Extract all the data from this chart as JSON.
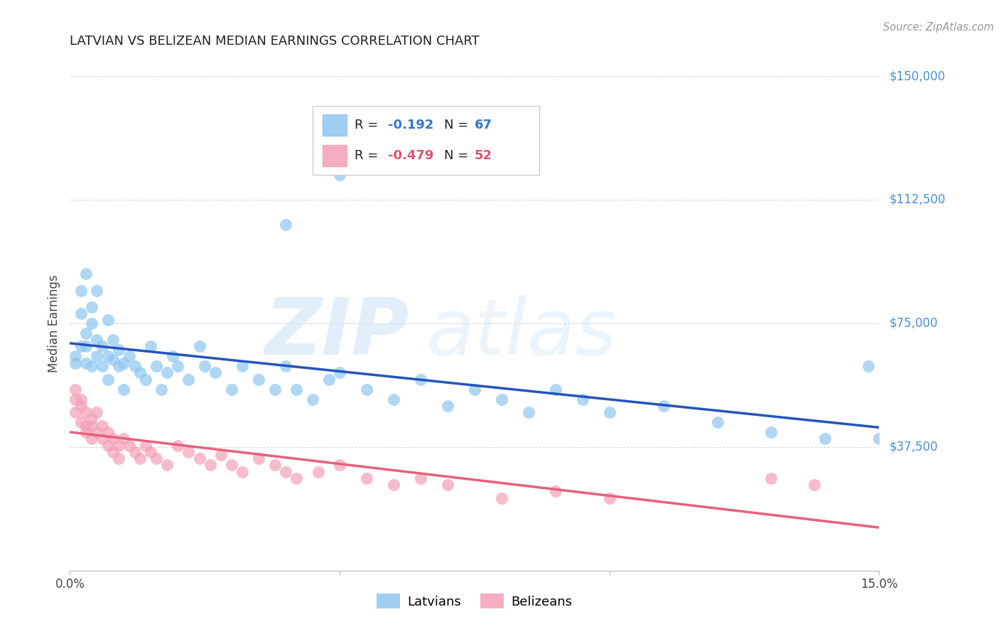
{
  "title": "LATVIAN VS BELIZEAN MEDIAN EARNINGS CORRELATION CHART",
  "source": "Source: ZipAtlas.com",
  "ylabel": "Median Earnings",
  "xlim": [
    0.0,
    0.15
  ],
  "ylim": [
    0,
    150000
  ],
  "yticks": [
    0,
    37500,
    75000,
    112500,
    150000
  ],
  "ytick_labels": [
    "",
    "$37,500",
    "$75,000",
    "$112,500",
    "$150,000"
  ],
  "background_color": "#ffffff",
  "grid_color": "#d0d0d0",
  "latvian_color": "#8ec6f0",
  "belizean_color": "#f4a0b5",
  "latvian_line_color": "#2255bb",
  "belizean_line_color": "#e8607a",
  "latvian_R": -0.192,
  "latvian_N": 67,
  "belizean_R": -0.479,
  "belizean_N": 52,
  "latvian_x": [
    0.001,
    0.001,
    0.002,
    0.002,
    0.002,
    0.003,
    0.003,
    0.003,
    0.003,
    0.004,
    0.004,
    0.004,
    0.005,
    0.005,
    0.005,
    0.006,
    0.006,
    0.007,
    0.007,
    0.007,
    0.008,
    0.008,
    0.009,
    0.009,
    0.01,
    0.01,
    0.011,
    0.012,
    0.013,
    0.014,
    0.015,
    0.016,
    0.017,
    0.018,
    0.019,
    0.02,
    0.022,
    0.024,
    0.025,
    0.027,
    0.03,
    0.032,
    0.035,
    0.038,
    0.04,
    0.042,
    0.045,
    0.048,
    0.05,
    0.055,
    0.06,
    0.065,
    0.07,
    0.075,
    0.08,
    0.085,
    0.09,
    0.095,
    0.1,
    0.11,
    0.12,
    0.13,
    0.14,
    0.148,
    0.15,
    0.05,
    0.04
  ],
  "latvian_y": [
    65000,
    63000,
    68000,
    78000,
    85000,
    72000,
    68000,
    90000,
    63000,
    80000,
    62000,
    75000,
    65000,
    70000,
    85000,
    68000,
    62000,
    65000,
    76000,
    58000,
    70000,
    64000,
    62000,
    67000,
    63000,
    55000,
    65000,
    62000,
    60000,
    58000,
    68000,
    62000,
    55000,
    60000,
    65000,
    62000,
    58000,
    68000,
    62000,
    60000,
    55000,
    62000,
    58000,
    55000,
    62000,
    55000,
    52000,
    58000,
    60000,
    55000,
    52000,
    58000,
    50000,
    55000,
    52000,
    48000,
    55000,
    52000,
    48000,
    50000,
    45000,
    42000,
    40000,
    62000,
    40000,
    120000,
    105000
  ],
  "belizean_x": [
    0.001,
    0.001,
    0.001,
    0.002,
    0.002,
    0.002,
    0.003,
    0.003,
    0.003,
    0.004,
    0.004,
    0.004,
    0.005,
    0.005,
    0.006,
    0.006,
    0.007,
    0.007,
    0.008,
    0.008,
    0.009,
    0.009,
    0.01,
    0.011,
    0.012,
    0.013,
    0.014,
    0.015,
    0.016,
    0.018,
    0.02,
    0.022,
    0.024,
    0.026,
    0.028,
    0.03,
    0.032,
    0.035,
    0.038,
    0.04,
    0.042,
    0.046,
    0.05,
    0.055,
    0.06,
    0.065,
    0.07,
    0.08,
    0.09,
    0.1,
    0.13,
    0.138
  ],
  "belizean_y": [
    52000,
    55000,
    48000,
    50000,
    45000,
    52000,
    48000,
    44000,
    42000,
    46000,
    40000,
    44000,
    48000,
    42000,
    44000,
    40000,
    42000,
    38000,
    40000,
    36000,
    38000,
    34000,
    40000,
    38000,
    36000,
    34000,
    38000,
    36000,
    34000,
    32000,
    38000,
    36000,
    34000,
    32000,
    35000,
    32000,
    30000,
    34000,
    32000,
    30000,
    28000,
    30000,
    32000,
    28000,
    26000,
    28000,
    26000,
    22000,
    24000,
    22000,
    28000,
    26000
  ]
}
